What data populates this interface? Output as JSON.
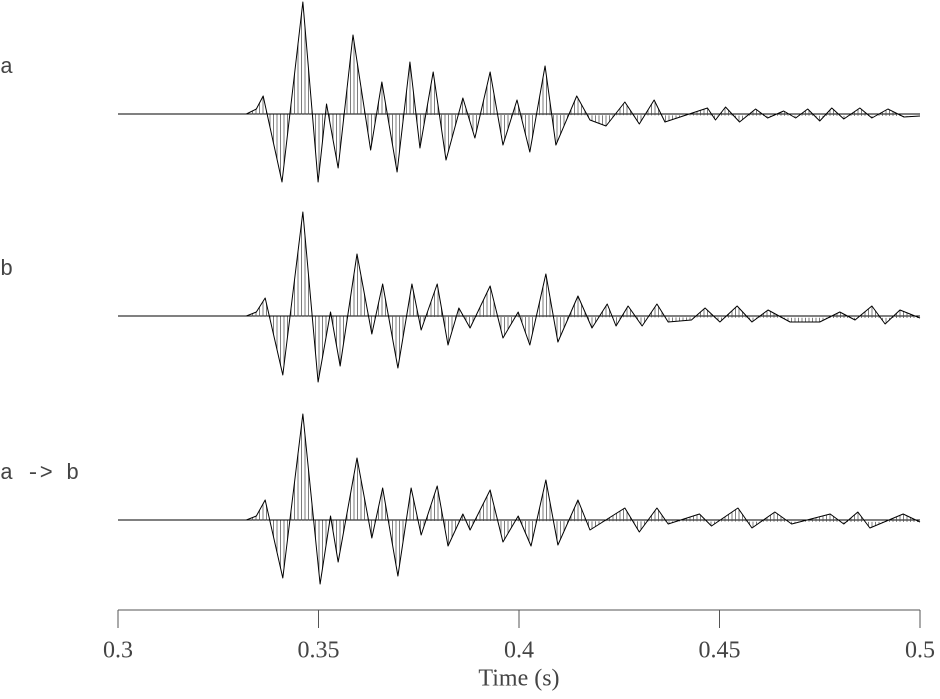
{
  "chart_data": [
    {
      "type": "line",
      "label": "a",
      "color": "#000000",
      "xlim": [
        0.3,
        0.5
      ],
      "x": [
        0.3,
        0.332,
        0.3345,
        0.3362,
        0.3409,
        0.3461,
        0.3499,
        0.352,
        0.3549,
        0.3586,
        0.363,
        0.3658,
        0.3696,
        0.3728,
        0.3753,
        0.3786,
        0.3818,
        0.386,
        0.389,
        0.3928,
        0.396,
        0.3995,
        0.4027,
        0.4065,
        0.4092,
        0.4144,
        0.4177,
        0.4217,
        0.4264,
        0.43,
        0.4337,
        0.4364,
        0.447,
        0.449,
        0.4515,
        0.455,
        0.459,
        0.462,
        0.466,
        0.469,
        0.472,
        0.475,
        0.478,
        0.481,
        0.485,
        0.488,
        0.492,
        0.496,
        0.5
      ],
      "values": [
        0,
        0,
        0.05,
        0.18,
        -0.68,
        1.12,
        -0.68,
        0.1,
        -0.54,
        0.79,
        -0.36,
        0.32,
        -0.58,
        0.52,
        -0.34,
        0.42,
        -0.46,
        0.16,
        -0.24,
        0.42,
        -0.31,
        0.14,
        -0.38,
        0.48,
        -0.31,
        0.18,
        -0.06,
        -0.12,
        0.12,
        -0.1,
        0.14,
        -0.08,
        0.06,
        -0.06,
        0.07,
        -0.08,
        0.05,
        -0.04,
        0.03,
        -0.04,
        0.05,
        -0.07,
        0.06,
        -0.05,
        0.06,
        -0.04,
        0.05,
        -0.03,
        -0.02
      ]
    },
    {
      "type": "line",
      "label": "b",
      "color": "#000000",
      "xlim": [
        0.3,
        0.5
      ],
      "x": [
        0.3,
        0.332,
        0.3345,
        0.3367,
        0.3411,
        0.3461,
        0.3499,
        0.353,
        0.3554,
        0.3596,
        0.3633,
        0.366,
        0.3698,
        0.3733,
        0.3756,
        0.3796,
        0.3823,
        0.385,
        0.3878,
        0.3928,
        0.396,
        0.3998,
        0.4027,
        0.4067,
        0.4097,
        0.4147,
        0.4182,
        0.422,
        0.4242,
        0.4272,
        0.4307,
        0.4344,
        0.4372,
        0.443,
        0.4464,
        0.4501,
        0.4544,
        0.4581,
        0.4621,
        0.4676,
        0.475,
        0.48,
        0.4838,
        0.488,
        0.4913,
        0.495,
        0.5
      ],
      "values": [
        0,
        0,
        0.04,
        0.18,
        -0.59,
        1.04,
        -0.66,
        0.04,
        -0.5,
        0.62,
        -0.18,
        0.32,
        -0.52,
        0.32,
        -0.14,
        0.32,
        -0.29,
        0.08,
        -0.12,
        0.3,
        -0.22,
        0.04,
        -0.29,
        0.42,
        -0.26,
        0.2,
        -0.12,
        0.12,
        -0.1,
        0.1,
        -0.1,
        0.12,
        -0.06,
        -0.04,
        0.08,
        -0.06,
        0.1,
        -0.06,
        0.06,
        -0.06,
        -0.06,
        0.04,
        -0.04,
        0.1,
        -0.08,
        0.06,
        -0.02
      ]
    },
    {
      "type": "line",
      "label": "a -> b",
      "color": "#000000",
      "xlim": [
        0.3,
        0.5
      ],
      "xticks": [
        0.3,
        0.35,
        0.4,
        0.45,
        0.5
      ],
      "xlabel": "Time (s)",
      "x": [
        0.3,
        0.332,
        0.3345,
        0.3367,
        0.3411,
        0.3461,
        0.3504,
        0.353,
        0.3549,
        0.3596,
        0.3633,
        0.366,
        0.3698,
        0.3731,
        0.3756,
        0.3796,
        0.3823,
        0.386,
        0.3878,
        0.3928,
        0.396,
        0.3998,
        0.403,
        0.4067,
        0.4097,
        0.4147,
        0.4177,
        0.4264,
        0.43,
        0.4344,
        0.4372,
        0.445,
        0.448,
        0.4546,
        0.4581,
        0.4638,
        0.468,
        0.4776,
        0.481,
        0.4845,
        0.4875,
        0.4958,
        0.5
      ],
      "values": [
        0,
        0,
        0.04,
        0.2,
        -0.58,
        1.06,
        -0.64,
        0.04,
        -0.42,
        0.62,
        -0.18,
        0.32,
        -0.56,
        0.32,
        -0.15,
        0.34,
        -0.26,
        0.06,
        -0.1,
        0.3,
        -0.22,
        0.04,
        -0.26,
        0.4,
        -0.25,
        0.2,
        -0.1,
        0.12,
        -0.12,
        0.12,
        -0.04,
        0.06,
        -0.06,
        0.12,
        -0.08,
        0.08,
        -0.04,
        0.06,
        -0.04,
        0.08,
        -0.08,
        0.06,
        -0.02
      ]
    }
  ]
}
